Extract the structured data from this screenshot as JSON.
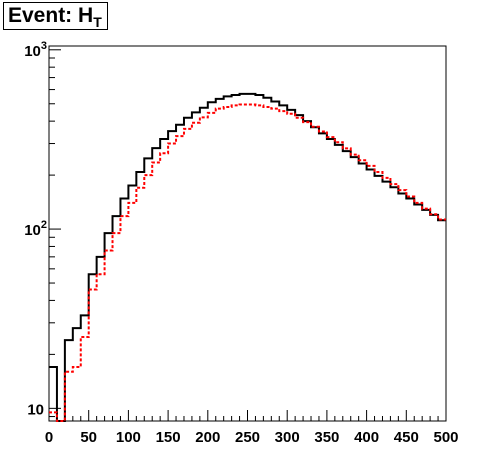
{
  "title": {
    "text": "Event: H",
    "subscript": "T"
  },
  "chart_data": {
    "type": "line",
    "title": "Event: H_T",
    "xlabel": "",
    "ylabel": "",
    "xlim": [
      0,
      500
    ],
    "ylim": [
      8.5,
      1050
    ],
    "yscale": "log",
    "grid": false,
    "x_ticks": [
      0,
      50,
      100,
      150,
      200,
      250,
      300,
      350,
      400,
      450,
      500
    ],
    "y_ticks": [
      {
        "value": 10,
        "label": "10"
      },
      {
        "value": 100,
        "label": "10",
        "exponent": "2"
      },
      {
        "value": 1000,
        "label": "10",
        "exponent": "3"
      }
    ],
    "bin_width": 10,
    "series": [
      {
        "style": "solid",
        "color": "#000000",
        "x": [
          0,
          10,
          20,
          30,
          40,
          50,
          60,
          70,
          80,
          90,
          100,
          110,
          120,
          130,
          140,
          150,
          160,
          170,
          180,
          190,
          200,
          210,
          220,
          230,
          240,
          250,
          260,
          270,
          280,
          290,
          300,
          310,
          320,
          330,
          340,
          350,
          360,
          370,
          380,
          390,
          400,
          410,
          420,
          430,
          440,
          450,
          460,
          470,
          480,
          490
        ],
        "values": [
          17,
          8,
          24,
          28,
          33,
          56,
          70,
          95,
          118,
          148,
          175,
          208,
          248,
          283,
          318,
          352,
          382,
          418,
          448,
          475,
          510,
          532,
          550,
          560,
          568,
          568,
          560,
          540,
          515,
          490,
          462,
          432,
          400,
          370,
          342,
          318,
          295,
          272,
          252,
          232,
          215,
          198,
          184,
          171,
          158,
          148,
          137,
          128,
          120,
          112
        ]
      },
      {
        "style": "dashed",
        "color": "#ff0000",
        "x": [
          0,
          10,
          20,
          30,
          40,
          50,
          60,
          70,
          80,
          90,
          100,
          110,
          120,
          130,
          140,
          150,
          160,
          170,
          180,
          190,
          200,
          210,
          220,
          230,
          240,
          250,
          260,
          270,
          280,
          290,
          300,
          310,
          320,
          330,
          340,
          350,
          360,
          370,
          380,
          390,
          400,
          410,
          420,
          430,
          440,
          450,
          460,
          470,
          480,
          490
        ],
        "values": [
          9.5,
          7.5,
          16,
          17,
          25,
          46,
          56,
          76,
          95,
          118,
          140,
          170,
          200,
          235,
          265,
          300,
          330,
          362,
          392,
          420,
          445,
          470,
          480,
          490,
          495,
          495,
          490,
          480,
          470,
          455,
          440,
          418,
          395,
          372,
          350,
          326,
          305,
          282,
          260,
          242,
          225,
          208,
          193,
          178,
          165,
          152,
          140,
          130,
          121,
          113
        ]
      }
    ]
  }
}
